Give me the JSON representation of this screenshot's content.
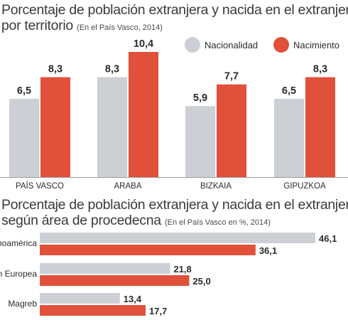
{
  "colors": {
    "nacionalidad": "#ccd0d4",
    "nacimiento": "#e0503a",
    "axis": "#9a9a9a",
    "text": "#2b2b2b"
  },
  "chart1": {
    "title_line1": "Porcentaje de población extranjera y nacida en el extranjero",
    "title_line2": "por territorio",
    "subtitle": "(En el País Vasco, 2014)"
  },
  "chart2": {
    "title_line1": "Porcentaje de población extranjera y nacida en el extranjero",
    "title_line2": "según área de procedecna",
    "subtitle": "(En el País Vasco en %, 2014)"
  },
  "chart_data": [
    {
      "type": "bar",
      "title": "Porcentaje de población extranjera y nacida en el extranjero por territorio",
      "subtitle": "(En el País Vasco, 2014)",
      "categories": [
        "PAÍS VASCO",
        "ARABA",
        "BIZKAIA",
        "GIPUZKOA"
      ],
      "series": [
        {
          "name": "Nacionalidad",
          "values": [
            6.5,
            8.3,
            5.9,
            6.5
          ],
          "labels": [
            "6,5",
            "8,3",
            "5,9",
            "6,5"
          ]
        },
        {
          "name": "Nacimiento",
          "values": [
            8.3,
            10.4,
            7.7,
            8.3
          ],
          "labels": [
            "8,3",
            "10,4",
            "7,7",
            "8,3"
          ]
        }
      ],
      "ylim": [
        0,
        10.4
      ],
      "legend": "top-right",
      "grid": false
    },
    {
      "type": "bar",
      "orientation": "horizontal",
      "title": "Porcentaje de población extranjera y nacida en el extranjero según área de procedecna",
      "subtitle": "(En el País Vasco en %, 2014)",
      "categories": [
        "Latinoamérica",
        "Unión Europea",
        "Magreb"
      ],
      "series": [
        {
          "values": [
            46.1,
            21.8,
            13.4
          ],
          "labels": [
            "46,1",
            "21,8",
            "13,4"
          ]
        },
        {
          "values": [
            36.1,
            25.0,
            17.7
          ],
          "labels": [
            "36,1",
            "25,0",
            "17,7"
          ]
        }
      ],
      "xlim": [
        0,
        46.1
      ],
      "grid": false
    }
  ]
}
